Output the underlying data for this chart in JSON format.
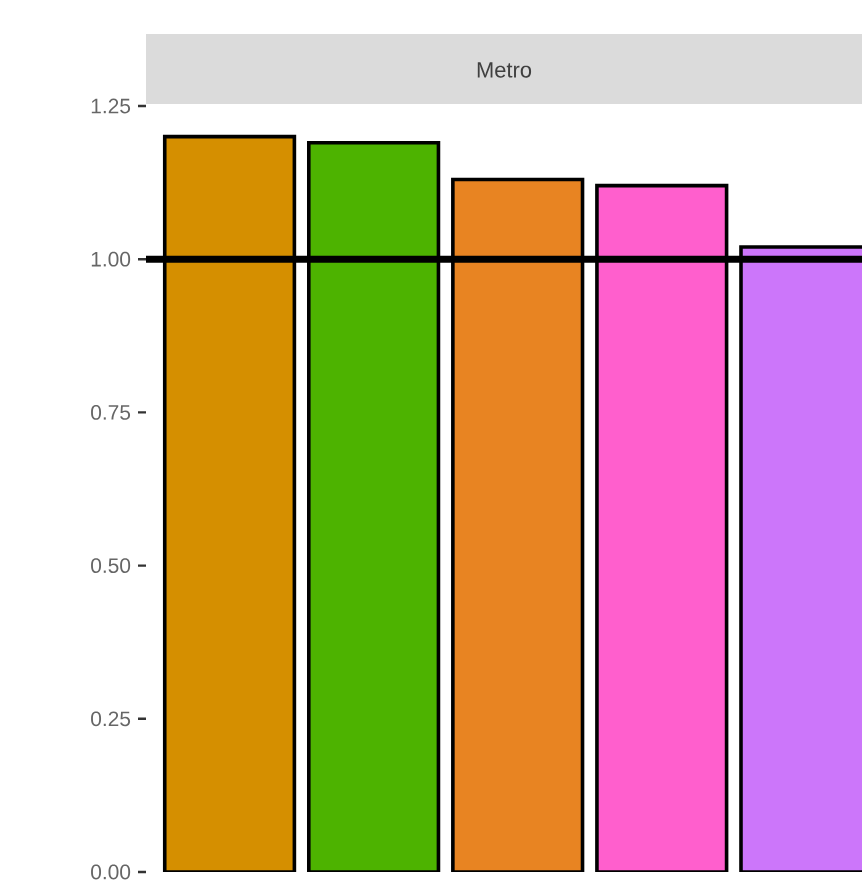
{
  "chart_data": {
    "type": "bar",
    "title": "Metro",
    "categories": [
      null,
      null,
      null,
      null,
      null
    ],
    "values": [
      1.2,
      1.19,
      1.13,
      1.12,
      1.02
    ],
    "colors": [
      "#d58f00",
      "#4db300",
      "#e88422",
      "#ff5fcd",
      "#cc76fa"
    ],
    "ylim": [
      0,
      1.25
    ],
    "yticks": [
      {
        "value": 0,
        "label": "0.00"
      },
      {
        "value": 0.25,
        "label": "0.25"
      },
      {
        "value": 0.5,
        "label": "0.50"
      },
      {
        "value": 0.75,
        "label": "0.75"
      },
      {
        "value": 1,
        "label": "1.00"
      },
      {
        "value": 1.25,
        "label": "1.25"
      }
    ],
    "ref_lines": [
      {
        "axis": "y",
        "value": 1,
        "color": "#000000"
      }
    ],
    "tick_labels": "y"
  }
}
